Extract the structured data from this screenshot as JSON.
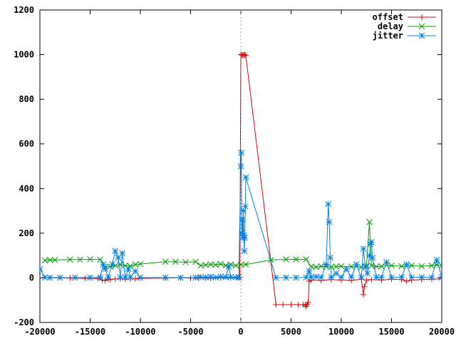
{
  "chart_data": {
    "type": "line",
    "title": "",
    "xlabel": "",
    "ylabel": "",
    "xlim": [
      -20000,
      20000
    ],
    "ylim": [
      -200,
      1200
    ],
    "xticks": [
      -20000,
      -15000,
      -10000,
      -5000,
      0,
      5000,
      10000,
      15000,
      20000
    ],
    "yticks": [
      -200,
      0,
      200,
      400,
      600,
      800,
      1000,
      1200
    ],
    "x_zero_line": true,
    "grid": false,
    "legend_position": "top-right",
    "series": [
      {
        "name": "offset",
        "color": "#e00000",
        "marker": "plus",
        "points": [
          [
            -19000,
            0
          ],
          [
            -17000,
            -1
          ],
          [
            -15500,
            -2
          ],
          [
            -14200,
            -3
          ],
          [
            -13800,
            -10
          ],
          [
            -13500,
            -12
          ],
          [
            -13200,
            -6
          ],
          [
            -13000,
            -8
          ],
          [
            -12500,
            -5
          ],
          [
            -12000,
            -4
          ],
          [
            -11500,
            -6
          ],
          [
            -11000,
            -5
          ],
          [
            -10500,
            -4
          ],
          [
            -10000,
            -2
          ],
          [
            -7500,
            -1
          ],
          [
            -6000,
            0
          ],
          [
            -5000,
            -1
          ],
          [
            -4200,
            -1
          ],
          [
            -3500,
            0
          ],
          [
            -3000,
            -2
          ],
          [
            -2000,
            0
          ],
          [
            -1000,
            0
          ],
          [
            -300,
            0
          ],
          [
            -100,
            2
          ],
          [
            0,
            1000
          ],
          [
            100,
            998
          ],
          [
            200,
            997
          ],
          [
            300,
            1000
          ],
          [
            400,
            998
          ],
          [
            500,
            996
          ],
          [
            3500,
            -120
          ],
          [
            4200,
            -120
          ],
          [
            5000,
            -120
          ],
          [
            5700,
            -120
          ],
          [
            6200,
            -120
          ],
          [
            6400,
            -122
          ],
          [
            6500,
            -128
          ],
          [
            6600,
            -120
          ],
          [
            6700,
            -110
          ],
          [
            6800,
            -15
          ],
          [
            7000,
            -10
          ],
          [
            8000,
            -12
          ],
          [
            9000,
            -8
          ],
          [
            10000,
            -10
          ],
          [
            11000,
            -12
          ],
          [
            12000,
            -6
          ],
          [
            12200,
            -75
          ],
          [
            12300,
            -40
          ],
          [
            12500,
            -10
          ],
          [
            13000,
            -8
          ],
          [
            14000,
            -10
          ],
          [
            15000,
            -6
          ],
          [
            16000,
            -8
          ],
          [
            16500,
            -15
          ],
          [
            17000,
            -10
          ],
          [
            18000,
            -8
          ],
          [
            19000,
            -6
          ],
          [
            20000,
            -5
          ]
        ]
      },
      {
        "name": "delay",
        "color": "#00a000",
        "marker": "cross",
        "points": [
          [
            -19500,
            78
          ],
          [
            -19000,
            80
          ],
          [
            -18500,
            80
          ],
          [
            -17000,
            82
          ],
          [
            -16000,
            82
          ],
          [
            -15000,
            83
          ],
          [
            -14000,
            82
          ],
          [
            -13500,
            50
          ],
          [
            -13000,
            50
          ],
          [
            -12500,
            55
          ],
          [
            -12000,
            60
          ],
          [
            -11500,
            55
          ],
          [
            -11000,
            52
          ],
          [
            -10500,
            60
          ],
          [
            -10000,
            62
          ],
          [
            -7500,
            72
          ],
          [
            -6500,
            72
          ],
          [
            -5500,
            70
          ],
          [
            -4500,
            72
          ],
          [
            -4000,
            55
          ],
          [
            -3500,
            58
          ],
          [
            -3000,
            60
          ],
          [
            -2500,
            58
          ],
          [
            -2000,
            62
          ],
          [
            -1500,
            55
          ],
          [
            -1000,
            60
          ],
          [
            -500,
            55
          ],
          [
            0,
            58
          ],
          [
            500,
            60
          ],
          [
            3000,
            80
          ],
          [
            4500,
            83
          ],
          [
            5500,
            83
          ],
          [
            6500,
            83
          ],
          [
            7000,
            50
          ],
          [
            7500,
            48
          ],
          [
            8000,
            52
          ],
          [
            8500,
            50
          ],
          [
            9000,
            48
          ],
          [
            9500,
            50
          ],
          [
            10000,
            52
          ],
          [
            11000,
            50
          ],
          [
            12000,
            48
          ],
          [
            12500,
            52
          ],
          [
            12800,
            250
          ],
          [
            13000,
            55
          ],
          [
            13500,
            50
          ],
          [
            14000,
            52
          ],
          [
            15000,
            55
          ],
          [
            16000,
            52
          ],
          [
            17000,
            55
          ],
          [
            18000,
            52
          ],
          [
            19000,
            55
          ],
          [
            19500,
            58
          ],
          [
            20000,
            55
          ]
        ]
      },
      {
        "name": "jitter",
        "color": "#0080e0",
        "marker": "star",
        "points": [
          [
            -20000,
            40
          ],
          [
            -19500,
            2
          ],
          [
            -19000,
            1
          ],
          [
            -18000,
            1
          ],
          [
            -16500,
            1
          ],
          [
            -15000,
            1
          ],
          [
            -14000,
            2
          ],
          [
            -13700,
            60
          ],
          [
            -13500,
            40
          ],
          [
            -13200,
            2
          ],
          [
            -12800,
            60
          ],
          [
            -12500,
            120
          ],
          [
            -12200,
            90
          ],
          [
            -12000,
            2
          ],
          [
            -11800,
            110
          ],
          [
            -11500,
            2
          ],
          [
            -11200,
            40
          ],
          [
            -11000,
            2
          ],
          [
            -10500,
            30
          ],
          [
            -10000,
            1
          ],
          [
            -7500,
            1
          ],
          [
            -6000,
            1
          ],
          [
            -4500,
            1
          ],
          [
            -4000,
            4
          ],
          [
            -3500,
            2
          ],
          [
            -3000,
            5
          ],
          [
            -2500,
            2
          ],
          [
            -2000,
            6
          ],
          [
            -1500,
            3
          ],
          [
            -1200,
            50
          ],
          [
            -1000,
            4
          ],
          [
            -500,
            2
          ],
          [
            -200,
            3
          ],
          [
            0,
            500
          ],
          [
            50,
            560
          ],
          [
            100,
            200
          ],
          [
            150,
            260
          ],
          [
            200,
            180
          ],
          [
            250,
            300
          ],
          [
            300,
            190
          ],
          [
            350,
            120
          ],
          [
            400,
            180
          ],
          [
            450,
            320
          ],
          [
            500,
            450
          ],
          [
            3500,
            0
          ],
          [
            4500,
            1
          ],
          [
            5500,
            1
          ],
          [
            6500,
            2
          ],
          [
            6800,
            30
          ],
          [
            7000,
            3
          ],
          [
            7500,
            5
          ],
          [
            8000,
            2
          ],
          [
            8500,
            60
          ],
          [
            8700,
            330
          ],
          [
            8800,
            250
          ],
          [
            8900,
            90
          ],
          [
            9000,
            3
          ],
          [
            9500,
            20
          ],
          [
            10000,
            2
          ],
          [
            10500,
            40
          ],
          [
            11000,
            3
          ],
          [
            11500,
            60
          ],
          [
            12000,
            2
          ],
          [
            12200,
            130
          ],
          [
            12400,
            50
          ],
          [
            12600,
            20
          ],
          [
            12800,
            100
          ],
          [
            12900,
            150
          ],
          [
            13000,
            160
          ],
          [
            13100,
            90
          ],
          [
            13500,
            3
          ],
          [
            14000,
            2
          ],
          [
            14500,
            70
          ],
          [
            15000,
            2
          ],
          [
            16000,
            3
          ],
          [
            16500,
            60
          ],
          [
            17000,
            2
          ],
          [
            18000,
            3
          ],
          [
            19000,
            2
          ],
          [
            19500,
            80
          ],
          [
            20000,
            2
          ]
        ]
      }
    ]
  }
}
